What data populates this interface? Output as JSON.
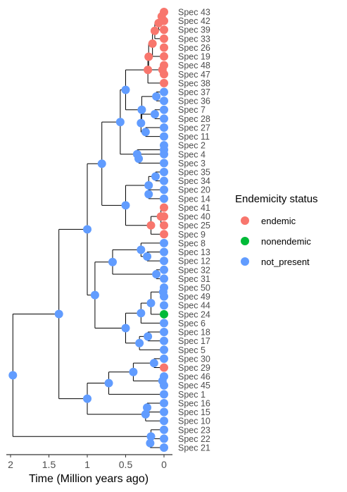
{
  "chart_data": {
    "type": "phylogenetic-tree",
    "xlabel": "Time (Million years ago)",
    "x_ticks": [
      2,
      1.5,
      1,
      0.5,
      0
    ],
    "xlim": [
      2,
      0
    ],
    "tips_top_to_bottom": [
      {
        "label": "Spec 43",
        "status": "endemic"
      },
      {
        "label": "Spec 42",
        "status": "endemic"
      },
      {
        "label": "Spec 39",
        "status": "endemic"
      },
      {
        "label": "Spec 33",
        "status": "endemic"
      },
      {
        "label": "Spec 26",
        "status": "endemic"
      },
      {
        "label": "Spec 19",
        "status": "endemic"
      },
      {
        "label": "Spec 48",
        "status": "endemic"
      },
      {
        "label": "Spec 47",
        "status": "endemic"
      },
      {
        "label": "Spec 38",
        "status": "endemic"
      },
      {
        "label": "Spec 37",
        "status": "not_present"
      },
      {
        "label": "Spec 36",
        "status": "not_present"
      },
      {
        "label": "Spec 7",
        "status": "not_present"
      },
      {
        "label": "Spec 28",
        "status": "not_present"
      },
      {
        "label": "Spec 27",
        "status": "not_present"
      },
      {
        "label": "Spec 11",
        "status": "not_present"
      },
      {
        "label": "Spec 2",
        "status": "not_present"
      },
      {
        "label": "Spec 4",
        "status": "not_present"
      },
      {
        "label": "Spec 3",
        "status": "not_present"
      },
      {
        "label": "Spec 35",
        "status": "not_present"
      },
      {
        "label": "Spec 34",
        "status": "not_present"
      },
      {
        "label": "Spec 20",
        "status": "not_present"
      },
      {
        "label": "Spec 14",
        "status": "not_present"
      },
      {
        "label": "Spec 41",
        "status": "endemic"
      },
      {
        "label": "Spec 40",
        "status": "endemic"
      },
      {
        "label": "Spec 25",
        "status": "endemic"
      },
      {
        "label": "Spec 9",
        "status": "endemic"
      },
      {
        "label": "Spec 8",
        "status": "not_present"
      },
      {
        "label": "Spec 13",
        "status": "not_present"
      },
      {
        "label": "Spec 12",
        "status": "not_present"
      },
      {
        "label": "Spec 32",
        "status": "not_present"
      },
      {
        "label": "Spec 31",
        "status": "not_present"
      },
      {
        "label": "Spec 50",
        "status": "not_present"
      },
      {
        "label": "Spec 49",
        "status": "not_present"
      },
      {
        "label": "Spec 44",
        "status": "not_present"
      },
      {
        "label": "Spec 24",
        "status": "nonendemic"
      },
      {
        "label": "Spec 6",
        "status": "not_present"
      },
      {
        "label": "Spec 18",
        "status": "not_present"
      },
      {
        "label": "Spec 17",
        "status": "not_present"
      },
      {
        "label": "Spec 5",
        "status": "not_present"
      },
      {
        "label": "Spec 30",
        "status": "not_present"
      },
      {
        "label": "Spec 29",
        "status": "endemic"
      },
      {
        "label": "Spec 46",
        "status": "not_present"
      },
      {
        "label": "Spec 45",
        "status": "not_present"
      },
      {
        "label": "Spec 1",
        "status": "not_present"
      },
      {
        "label": "Spec 16",
        "status": "not_present"
      },
      {
        "label": "Spec 15",
        "status": "not_present"
      },
      {
        "label": "Spec 10",
        "status": "not_present"
      },
      {
        "label": "Spec 23",
        "status": "not_present"
      },
      {
        "label": "Spec 22",
        "status": "not_present"
      },
      {
        "label": "Spec 21",
        "status": "not_present"
      }
    ],
    "internal_nodes": [
      {
        "id": "root",
        "t": 1.97,
        "children": [
          "A",
          "Z"
        ],
        "status": "not_present"
      },
      {
        "id": "Z",
        "t": 0.17,
        "children": [
          "Spec 23",
          "Z2"
        ],
        "status": "not_present"
      },
      {
        "id": "Z2",
        "t": 0.18,
        "children": [
          "Spec 22",
          "Spec 21"
        ],
        "status": "not_present"
      },
      {
        "id": "A",
        "t": 1.37,
        "children": [
          "B",
          "G"
        ],
        "status": "not_present"
      },
      {
        "id": "B",
        "t": 1.0,
        "children": [
          "B1",
          "F"
        ],
        "status": "not_present"
      },
      {
        "id": "B1",
        "t": 0.81,
        "children": [
          "C",
          "E"
        ],
        "status": "not_present"
      },
      {
        "id": "C",
        "t": 0.57,
        "children": [
          "C1",
          "D"
        ],
        "status": "not_present"
      },
      {
        "id": "C1",
        "t": 0.5,
        "children": [
          "D1",
          "C2"
        ],
        "status": "not_present"
      },
      {
        "id": "D1",
        "t": 0.21,
        "children": [
          "D1a",
          "Spec 38"
        ],
        "status": "endemic"
      },
      {
        "id": "D1a",
        "t": 0.2,
        "children": [
          "D1b",
          "D1e"
        ],
        "status": "endemic"
      },
      {
        "id": "D1b",
        "t": 0.15,
        "children": [
          "D1c",
          "Spec 19"
        ],
        "status": "endemic"
      },
      {
        "id": "D1c",
        "t": 0.12,
        "children": [
          "D1d",
          "Spec 33"
        ],
        "status": "endemic"
      },
      {
        "id": "D1d",
        "t": 0.07,
        "children": [
          "D1g",
          "Spec 39"
        ],
        "status": "endemic"
      },
      {
        "id": "D1g",
        "t": 0.03,
        "children": [
          "Spec 43",
          "Spec 42"
        ],
        "status": "endemic"
      },
      {
        "id": "D1e",
        "t": 0.02,
        "children": [
          "Spec 48",
          "Spec 47"
        ],
        "status": "endemic"
      },
      {
        "id": "C2",
        "t": 0.29,
        "children": [
          "C3",
          "C4"
        ],
        "status": "not_present"
      },
      {
        "id": "C3",
        "t": 0.1,
        "children": [
          "Spec 37",
          "Spec 36"
        ],
        "status": "not_present"
      },
      {
        "id": "C4",
        "t": 0.3,
        "children": [
          "C5",
          "C6"
        ],
        "status": "not_present"
      },
      {
        "id": "C5",
        "t": 0.12,
        "children": [
          "Spec 7",
          "Spec 28"
        ],
        "status": "not_present"
      },
      {
        "id": "C6",
        "t": 0.24,
        "children": [
          "Spec 27",
          "Spec 11"
        ],
        "status": "not_present"
      },
      {
        "id": "D",
        "t": 0.35,
        "children": [
          "D2",
          "D3"
        ],
        "status": "not_present"
      },
      {
        "id": "D2",
        "t": 0.0,
        "children": [
          "Spec 2",
          "Spec 4"
        ],
        "status": "not_present"
      },
      {
        "id": "D3",
        "t": 0.33,
        "children": [
          "Spec 4",
          "Spec 3"
        ],
        "status": "not_present"
      },
      {
        "id": "E",
        "t": 0.5,
        "children": [
          "E1",
          "E2"
        ],
        "status": "not_present"
      },
      {
        "id": "E1",
        "t": 0.2,
        "children": [
          "E3",
          "E4"
        ],
        "status": "not_present"
      },
      {
        "id": "E3",
        "t": 0.11,
        "children": [
          "Spec 35",
          "Spec 34"
        ],
        "status": "not_present"
      },
      {
        "id": "E4",
        "t": 0.2,
        "children": [
          "Spec 20",
          "Spec 14"
        ],
        "status": "not_present"
      },
      {
        "id": "E2",
        "t": 0.17,
        "children": [
          "E5",
          "Spec 9"
        ],
        "status": "endemic"
      },
      {
        "id": "E5",
        "t": 0.04,
        "children": [
          "Spec 41",
          "Spec 25"
        ],
        "status": "endemic"
      },
      {
        "id": "F",
        "t": 0.9,
        "children": [
          "F1",
          "F2"
        ],
        "status": "not_present"
      },
      {
        "id": "F1",
        "t": 0.67,
        "children": [
          "F3",
          "F5"
        ],
        "status": "not_present"
      },
      {
        "id": "F3",
        "t": 0.3,
        "children": [
          "Spec 8",
          "F4"
        ],
        "status": "not_present"
      },
      {
        "id": "F4",
        "t": 0.22,
        "children": [
          "Spec 13",
          "Spec 12"
        ],
        "status": "not_present"
      },
      {
        "id": "F5",
        "t": 0.1,
        "children": [
          "Spec 32",
          "Spec 31"
        ],
        "status": "not_present"
      },
      {
        "id": "G",
        "t": 1.0,
        "children": [
          "G1",
          "G2"
        ],
        "status": "not_present"
      },
      {
        "id": "F2",
        "t": 0.5,
        "children": [
          "F6",
          "F7"
        ],
        "status": "not_present"
      },
      {
        "id": "F6",
        "t": 0.3,
        "children": [
          "F8",
          "Spec 6"
        ],
        "status": "not_present"
      },
      {
        "id": "F8",
        "t": 0.17,
        "children": [
          "F9",
          "Spec 24"
        ],
        "status": "not_present"
      },
      {
        "id": "F9",
        "t": 0.01,
        "children": [
          "Spec 50",
          "Spec 49"
        ],
        "status": "not_present"
      },
      {
        "id": "F7",
        "t": 0.32,
        "children": [
          "F10",
          "Spec 5"
        ],
        "status": "not_present"
      },
      {
        "id": "F10",
        "t": 0.21,
        "children": [
          "Spec 18",
          "Spec 17"
        ],
        "status": "not_present"
      },
      {
        "id": "G1",
        "t": 0.72,
        "children": [
          "G3",
          "Spec 1"
        ],
        "status": "not_present"
      },
      {
        "id": "G3",
        "t": 0.4,
        "children": [
          "G4",
          "G5"
        ],
        "status": "not_present"
      },
      {
        "id": "G4",
        "t": 0.13,
        "children": [
          "Spec 30",
          "Spec 29"
        ],
        "status": "not_present"
      },
      {
        "id": "G5",
        "t": 0.02,
        "children": [
          "Spec 46",
          "Spec 45"
        ],
        "status": "not_present"
      },
      {
        "id": "G2",
        "t": 0.24,
        "children": [
          "G6",
          "Spec 10"
        ],
        "status": "not_present"
      },
      {
        "id": "G6",
        "t": 0.22,
        "children": [
          "Spec 16",
          "Spec 15"
        ],
        "status": "not_present"
      }
    ],
    "legend": {
      "title": "Endemicity status",
      "placement": "right",
      "entries": [
        {
          "label": "endemic",
          "color": "#F8766D"
        },
        {
          "label": "nonendemic",
          "color": "#00BA38"
        },
        {
          "label": "not_present",
          "color": "#619CFF"
        }
      ]
    }
  }
}
